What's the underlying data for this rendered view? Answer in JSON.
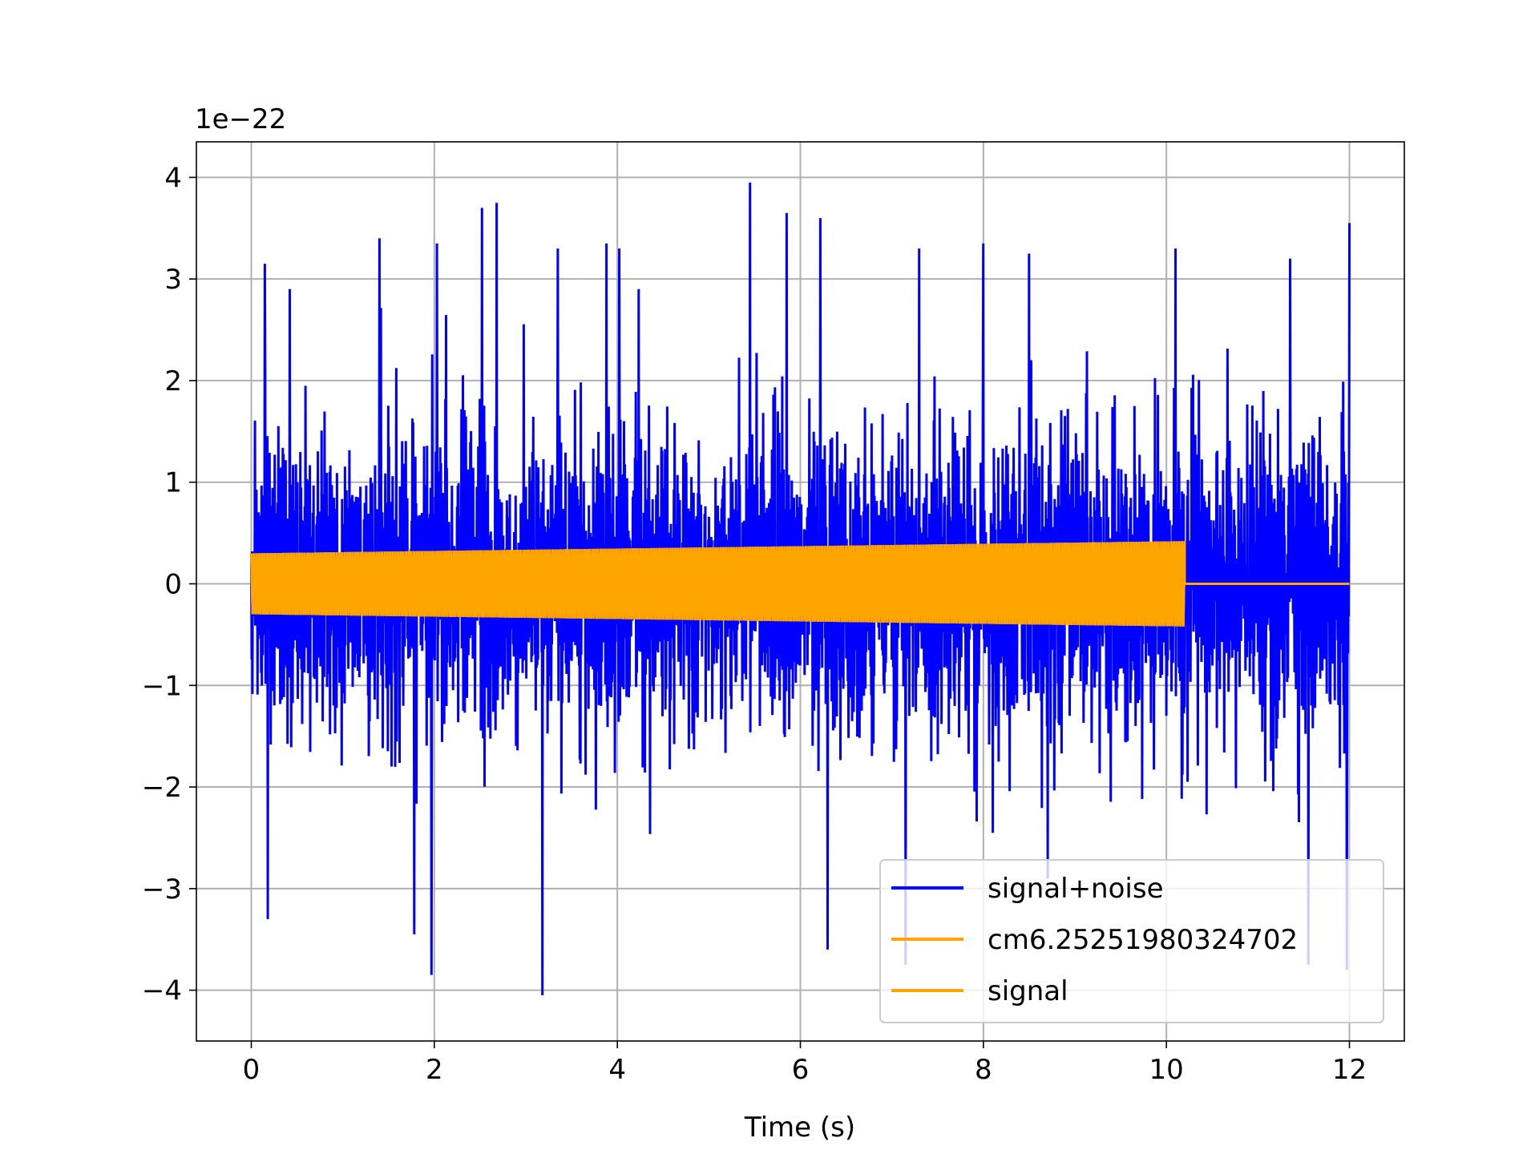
{
  "chart_data": {
    "type": "line",
    "title": "",
    "xlabel": "Time (s)",
    "ylabel": "",
    "y_offset_label": "1e−22",
    "y_scale_multiplier": 1e-22,
    "xlim": [
      -0.6,
      12.6
    ],
    "ylim": [
      -4.5,
      4.35
    ],
    "x_ticks": [
      0,
      2,
      4,
      6,
      8,
      10,
      12
    ],
    "y_ticks": [
      -4,
      -3,
      -2,
      -1,
      0,
      1,
      2,
      3,
      4
    ],
    "x_tick_labels": [
      "0",
      "2",
      "4",
      "6",
      "8",
      "10",
      "12"
    ],
    "y_tick_labels": [
      "−4",
      "−3",
      "−2",
      "−1",
      "0",
      "1",
      "2",
      "3",
      "4"
    ],
    "grid": true,
    "legend_position": "lower-right",
    "series": [
      {
        "name": "signal+noise",
        "color": "#0000ff",
        "description_values": {
          "x_range": [
            0,
            12
          ],
          "typical_amplitude": 1.5,
          "peak_max": 3.95,
          "peak_min": -4.05
        },
        "spikes": [
          {
            "x": 0.15,
            "y": 3.15
          },
          {
            "x": 0.18,
            "y": -3.3
          },
          {
            "x": 0.42,
            "y": 2.9
          },
          {
            "x": 1.4,
            "y": 3.4
          },
          {
            "x": 1.78,
            "y": -3.45
          },
          {
            "x": 1.97,
            "y": -3.85
          },
          {
            "x": 2.03,
            "y": 3.35
          },
          {
            "x": 2.52,
            "y": 3.7
          },
          {
            "x": 2.68,
            "y": 3.75
          },
          {
            "x": 3.18,
            "y": -4.05
          },
          {
            "x": 3.35,
            "y": 3.3
          },
          {
            "x": 3.88,
            "y": 3.35
          },
          {
            "x": 4.02,
            "y": 3.3
          },
          {
            "x": 5.45,
            "y": 3.95
          },
          {
            "x": 5.85,
            "y": 3.65
          },
          {
            "x": 6.22,
            "y": 3.6
          },
          {
            "x": 6.3,
            "y": -3.6
          },
          {
            "x": 7.3,
            "y": 3.3
          },
          {
            "x": 7.15,
            "y": -3.75
          },
          {
            "x": 8.0,
            "y": 3.35
          },
          {
            "x": 8.5,
            "y": 3.25
          },
          {
            "x": 10.1,
            "y": 3.3
          },
          {
            "x": 11.35,
            "y": 3.2
          },
          {
            "x": 11.55,
            "y": -3.75
          },
          {
            "x": 12.0,
            "y": 3.55
          },
          {
            "x": 11.97,
            "y": -3.8
          }
        ]
      },
      {
        "name": "cm6.25251980324702",
        "color": "#ffa500",
        "description_values": {
          "x_range": [
            0,
            12
          ],
          "envelope_start": 0.3,
          "envelope_end_at_merger": 0.42,
          "merger_time": 10.2,
          "post_merger_value": 0
        }
      },
      {
        "name": "signal",
        "color": "#ffa500",
        "description_values": {
          "x_range": [
            0,
            12
          ],
          "envelope_start": 0.3,
          "envelope_end_at_merger": 0.42,
          "merger_time": 10.2,
          "post_merger_value": 0
        }
      }
    ]
  }
}
